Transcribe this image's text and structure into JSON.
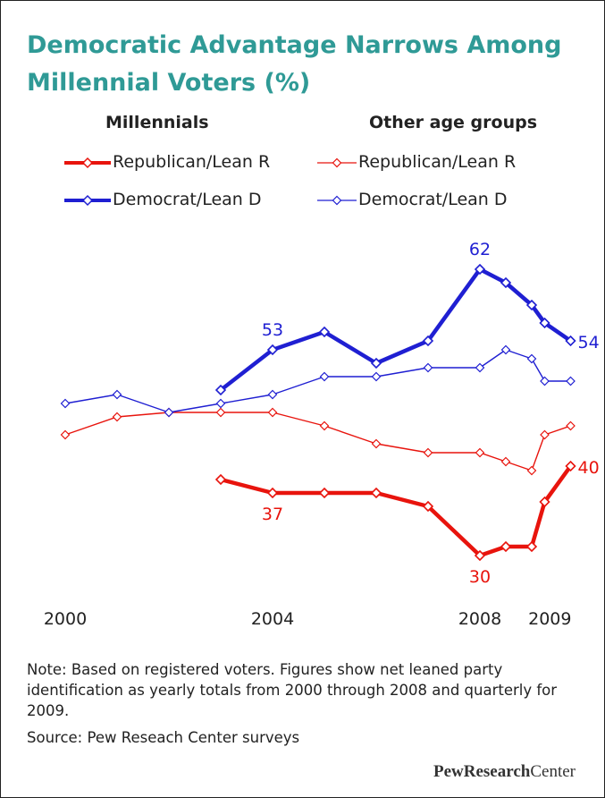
{
  "title_line1": "Democratic Advantage Narrows Among",
  "title_line2": "Millennial Voters (%)",
  "legend": {
    "millennials_header": "Millennials",
    "other_header": "Other age groups",
    "rep_label": "Republican/Lean R",
    "dem_label": "Democrat/Lean D"
  },
  "colors": {
    "republican": "#e8140d",
    "democrat": "#1f1fd2",
    "title": "#2f9a96"
  },
  "note": "Note: Based on registered voters. Figures show net leaned party identification as yearly totals from 2000 through 2008 and quarterly for 2009.",
  "source": "Source: Pew Reseach Center surveys",
  "logo": {
    "bold": "PewResearch",
    "regular": "Center"
  },
  "chart_data": {
    "type": "line",
    "title": "Democratic Advantage Narrows Among Millennial Voters (%)",
    "x_tick_labels": [
      "2000",
      "2004",
      "2008",
      "2009"
    ],
    "x_tick_values": [
      2000,
      2004,
      2008,
      2009
    ],
    "ylim": [
      26,
      66
    ],
    "grid": false,
    "legend_position": "top",
    "series": [
      {
        "name": "Republican/Lean R",
        "group": "Millennials",
        "party": "republican",
        "style": "thick",
        "x": [
          2003,
          2004,
          2005,
          2006,
          2007,
          2008,
          2008.5,
          2009,
          2009.25,
          2009.75
        ],
        "y": [
          38.5,
          37,
          37,
          37,
          35.5,
          30,
          31,
          31,
          36,
          40
        ],
        "data_labels": {
          "1": "37",
          "5": "30",
          "9": "40"
        }
      },
      {
        "name": "Democrat/Lean D",
        "group": "Millennials",
        "party": "democrat",
        "style": "thick",
        "x": [
          2003,
          2004,
          2005,
          2006,
          2007,
          2008,
          2008.5,
          2009,
          2009.25,
          2009.75
        ],
        "y": [
          48.5,
          53,
          55,
          51.5,
          54,
          62,
          60.5,
          58,
          56,
          54
        ],
        "data_labels": {
          "1": "53",
          "5": "62",
          "9": "54"
        }
      },
      {
        "name": "Republican/Lean R",
        "group": "Other age groups",
        "party": "republican",
        "style": "thin",
        "x": [
          2000,
          2001,
          2002,
          2003,
          2004,
          2005,
          2006,
          2007,
          2008,
          2008.5,
          2009,
          2009.25,
          2009.75
        ],
        "y": [
          43.5,
          45.5,
          46,
          46,
          46,
          44.5,
          42.5,
          41.5,
          41.5,
          40.5,
          39.5,
          43.5,
          44.5
        ]
      },
      {
        "name": "Democrat/Lean D",
        "group": "Other age groups",
        "party": "democrat",
        "style": "thin",
        "x": [
          2000,
          2001,
          2002,
          2003,
          2004,
          2005,
          2006,
          2007,
          2008,
          2008.5,
          2009,
          2009.25,
          2009.75
        ],
        "y": [
          47,
          48,
          46,
          47,
          48,
          50,
          50,
          51,
          51,
          53,
          52,
          49.5,
          49.5
        ]
      }
    ]
  }
}
